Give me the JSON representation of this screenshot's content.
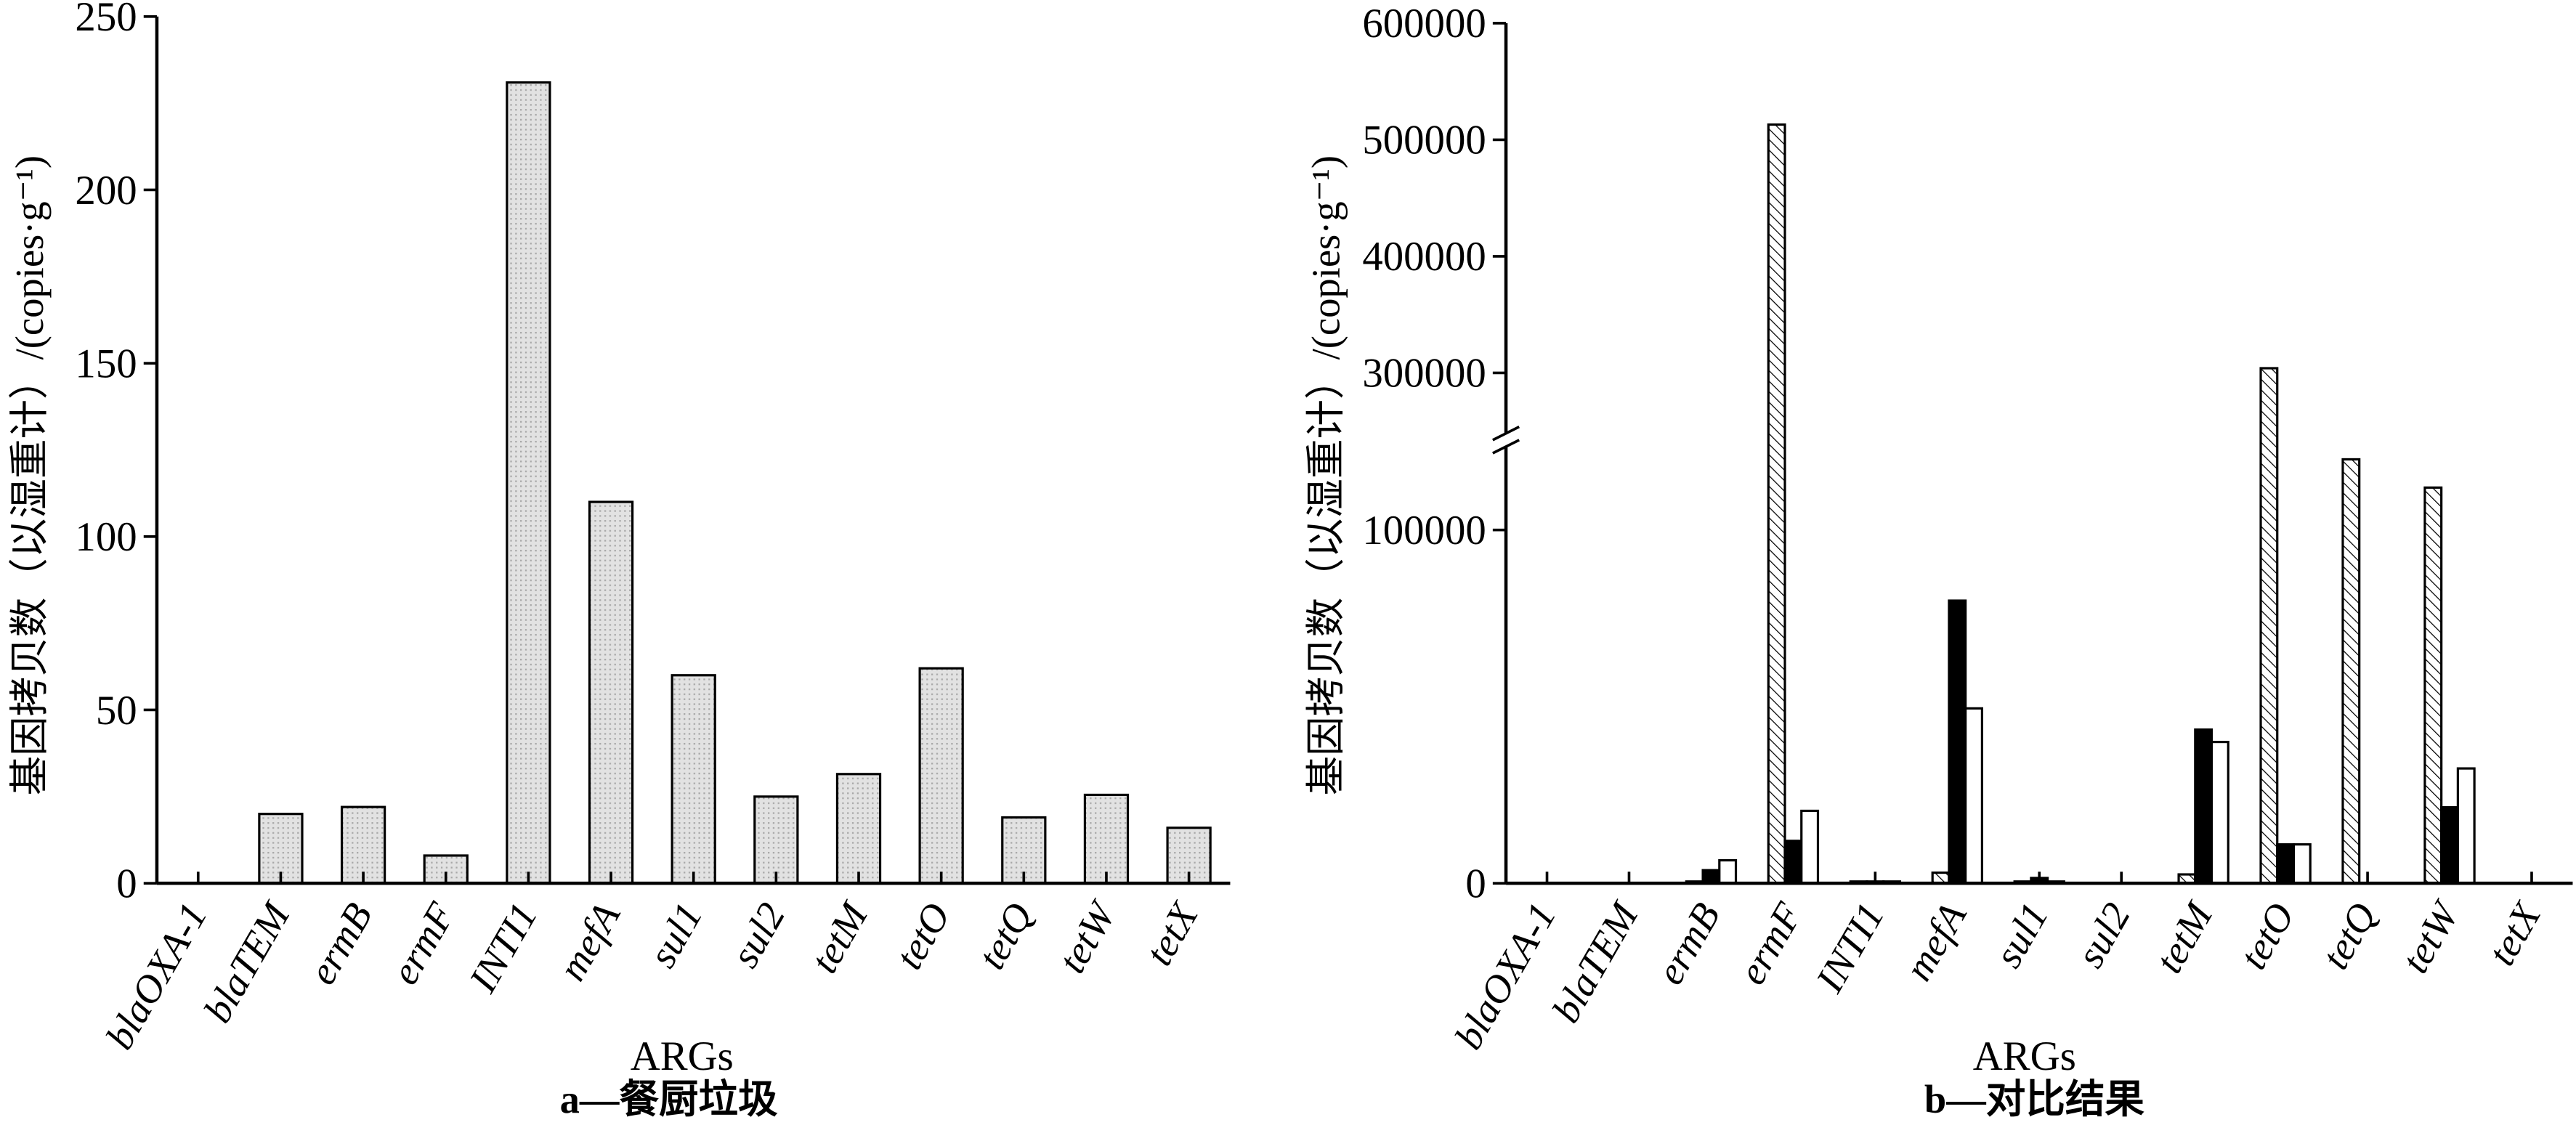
{
  "colors": {
    "axis": "#000000",
    "background": "#ffffff"
  },
  "chart_data": [
    {
      "type": "bar",
      "caption": "a—餐厨垃圾",
      "xlabel": "ARGs",
      "ylabel": "基因拷贝数（以湿重计）/(copies·g⁻¹)",
      "categories": [
        "blaOXA-1",
        "blaTEM",
        "ermB",
        "ermF",
        "INTI1",
        "mefA",
        "sul1",
        "sul2",
        "tetM",
        "tetO",
        "tetQ",
        "tetW",
        "tetX"
      ],
      "values": [
        0,
        20,
        22,
        8,
        231,
        110,
        60,
        25,
        31.5,
        62,
        19,
        25.5,
        16
      ],
      "bar_color": "#e2e2e2",
      "ylim": [
        0,
        250
      ],
      "yticks": [
        0,
        50,
        100,
        150,
        200,
        250
      ],
      "grid": false
    },
    {
      "type": "bar",
      "caption": "b—对比结果",
      "xlabel": "ARGs",
      "ylabel": "基因拷贝数（以湿重计）/(copies·g⁻¹)",
      "categories": [
        "blaOXA-1",
        "blaTEM",
        "ermB",
        "ermF",
        "INTI1",
        "mefA",
        "sul1",
        "sul2",
        "tetM",
        "tetO",
        "tetQ",
        "tetW",
        "tetX"
      ],
      "series": [
        {
          "color": "#ffffff",
          "hatched": true,
          "values": [
            0,
            0,
            500,
            513000,
            500,
            3000,
            500,
            0,
            2500,
            304000,
            120000,
            112000,
            0
          ]
        },
        {
          "color": "#000000",
          "hatched": false,
          "values": [
            0,
            0,
            3700,
            12000,
            500,
            80000,
            1500,
            0,
            43500,
            11000,
            0,
            21500,
            0
          ]
        },
        {
          "color": "#ffffff",
          "hatched": false,
          "values": [
            0,
            0,
            6500,
            20500,
            500,
            49500,
            500,
            0,
            40000,
            11000,
            0,
            32500,
            0
          ]
        }
      ],
      "ylim": [
        0,
        600000
      ],
      "y_break": [
        125000,
        241000
      ],
      "yticks": [
        0,
        100000,
        300000,
        400000,
        500000,
        600000
      ],
      "grid": false
    }
  ]
}
